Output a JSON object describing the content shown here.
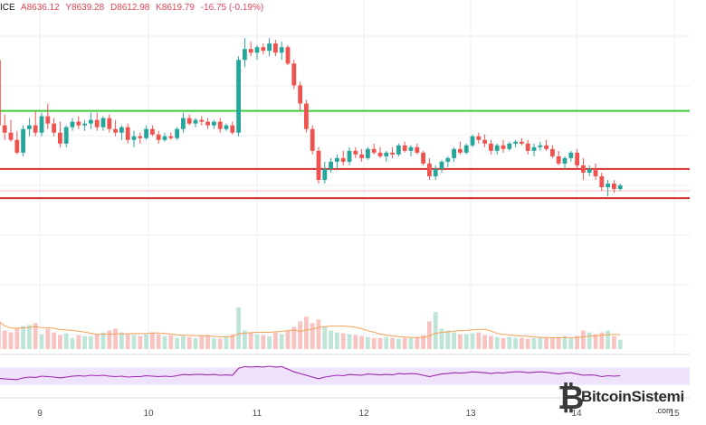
{
  "header": {
    "symbol": "ICE",
    "open": "A8636.12",
    "high": "Y8639.28",
    "low": "D8612.98",
    "close": "K8619.79",
    "change": "-16.75 (-0.19%)"
  },
  "colors": {
    "up": "#26a69a",
    "down": "#ef5350",
    "resistance": "#3ccd3c",
    "support": "#d32f2f",
    "ma": "#f4a35a",
    "rsi_line": "#9c27b0",
    "rsi_band": "#efe2fb",
    "grid": "#eceff4"
  },
  "watermark": {
    "text": "BitcoinSistemi",
    "suffix": ".com",
    "icon": "bitcoin-logo-icon"
  },
  "chart_data": {
    "type": "candlestick",
    "x_ticks": [
      "9",
      "10",
      "11",
      "12",
      "13",
      "14",
      "15"
    ],
    "price_range": [
      8560,
      9480
    ],
    "horizontal_lines": [
      {
        "name": "resistance",
        "value": 9220
      },
      {
        "name": "support-1",
        "value": 9060
      },
      {
        "name": "support-2",
        "value": 8980
      }
    ],
    "candles": [
      [
        9360,
        9370,
        9160,
        9180
      ],
      [
        9180,
        9210,
        9140,
        9160
      ],
      [
        9160,
        9195,
        9135,
        9140
      ],
      [
        9140,
        9165,
        9100,
        9105
      ],
      [
        9105,
        9180,
        9095,
        9170
      ],
      [
        9170,
        9200,
        9150,
        9180
      ],
      [
        9180,
        9220,
        9150,
        9160
      ],
      [
        9160,
        9215,
        9150,
        9205
      ],
      [
        9205,
        9240,
        9170,
        9185
      ],
      [
        9185,
        9200,
        9150,
        9160
      ],
      [
        9160,
        9190,
        9120,
        9130
      ],
      [
        9130,
        9180,
        9120,
        9175
      ],
      [
        9175,
        9200,
        9165,
        9190
      ],
      [
        9190,
        9205,
        9170,
        9180
      ],
      [
        9180,
        9195,
        9165,
        9185
      ],
      [
        9185,
        9215,
        9170,
        9195
      ],
      [
        9195,
        9215,
        9165,
        9175
      ],
      [
        9175,
        9205,
        9165,
        9200
      ],
      [
        9200,
        9210,
        9160,
        9170
      ],
      [
        9170,
        9195,
        9150,
        9160
      ],
      [
        9160,
        9180,
        9140,
        9175
      ],
      [
        9175,
        9185,
        9130,
        9140
      ],
      [
        9140,
        9165,
        9120,
        9150
      ],
      [
        9150,
        9160,
        9130,
        9145
      ],
      [
        9145,
        9180,
        9140,
        9170
      ],
      [
        9170,
        9180,
        9150,
        9155
      ],
      [
        9155,
        9165,
        9130,
        9140
      ],
      [
        9140,
        9160,
        9135,
        9150
      ],
      [
        9150,
        9160,
        9140,
        9145
      ],
      [
        9145,
        9175,
        9140,
        9170
      ],
      [
        9170,
        9215,
        9160,
        9200
      ],
      [
        9200,
        9210,
        9180,
        9185
      ],
      [
        9185,
        9200,
        9175,
        9195
      ],
      [
        9195,
        9205,
        9180,
        9190
      ],
      [
        9190,
        9200,
        9170,
        9180
      ],
      [
        9180,
        9195,
        9170,
        9190
      ],
      [
        9190,
        9200,
        9160,
        9170
      ],
      [
        9170,
        9185,
        9165,
        9180
      ],
      [
        9180,
        9190,
        9155,
        9160
      ],
      [
        9160,
        9370,
        9150,
        9360
      ],
      [
        9360,
        9420,
        9340,
        9390
      ],
      [
        9390,
        9410,
        9370,
        9380
      ],
      [
        9380,
        9400,
        9360,
        9395
      ],
      [
        9395,
        9405,
        9375,
        9385
      ],
      [
        9385,
        9420,
        9370,
        9405
      ],
      [
        9405,
        9415,
        9370,
        9380
      ],
      [
        9380,
        9410,
        9360,
        9395
      ],
      [
        9395,
        9400,
        9345,
        9350
      ],
      [
        9350,
        9360,
        9280,
        9290
      ],
      [
        9290,
        9300,
        9220,
        9240
      ],
      [
        9240,
        9250,
        9160,
        9170
      ],
      [
        9170,
        9180,
        9100,
        9110
      ],
      [
        9110,
        9120,
        9020,
        9030
      ],
      [
        9030,
        9080,
        9020,
        9060
      ],
      [
        9060,
        9090,
        9050,
        9080
      ],
      [
        9080,
        9100,
        9060,
        9090
      ],
      [
        9090,
        9110,
        9070,
        9080
      ],
      [
        9080,
        9120,
        9070,
        9110
      ],
      [
        9110,
        9120,
        9090,
        9100
      ],
      [
        9100,
        9115,
        9080,
        9090
      ],
      [
        9090,
        9120,
        9085,
        9115
      ],
      [
        9115,
        9130,
        9100,
        9105
      ],
      [
        9105,
        9120,
        9090,
        9095
      ],
      [
        9095,
        9110,
        9080,
        9105
      ],
      [
        9105,
        9120,
        9090,
        9100
      ],
      [
        9100,
        9130,
        9095,
        9125
      ],
      [
        9125,
        9135,
        9105,
        9110
      ],
      [
        9110,
        9125,
        9095,
        9120
      ],
      [
        9120,
        9130,
        9100,
        9105
      ],
      [
        9105,
        9110,
        9070,
        9075
      ],
      [
        9075,
        9090,
        9030,
        9040
      ],
      [
        9040,
        9070,
        9030,
        9060
      ],
      [
        9060,
        9085,
        9050,
        9080
      ],
      [
        9080,
        9095,
        9065,
        9090
      ],
      [
        9090,
        9120,
        9080,
        9115
      ],
      [
        9115,
        9135,
        9100,
        9105
      ],
      [
        9105,
        9130,
        9100,
        9125
      ],
      [
        9125,
        9155,
        9120,
        9150
      ],
      [
        9150,
        9160,
        9130,
        9140
      ],
      [
        9140,
        9155,
        9120,
        9130
      ],
      [
        9130,
        9140,
        9100,
        9110
      ],
      [
        9110,
        9130,
        9100,
        9125
      ],
      [
        9125,
        9140,
        9105,
        9115
      ],
      [
        9115,
        9135,
        9110,
        9130
      ],
      [
        9130,
        9140,
        9120,
        9135
      ],
      [
        9135,
        9145,
        9125,
        9130
      ],
      [
        9130,
        9140,
        9100,
        9110
      ],
      [
        9110,
        9130,
        9095,
        9120
      ],
      [
        9120,
        9135,
        9110,
        9125
      ],
      [
        9125,
        9140,
        9110,
        9115
      ],
      [
        9115,
        9125,
        9090,
        9095
      ],
      [
        9095,
        9110,
        9070,
        9075
      ],
      [
        9075,
        9095,
        9060,
        9090
      ],
      [
        9090,
        9110,
        9080,
        9105
      ],
      [
        9105,
        9115,
        9060,
        9070
      ],
      [
        9070,
        9090,
        9030,
        9050
      ],
      [
        9050,
        9070,
        9040,
        9060
      ],
      [
        9060,
        9075,
        9030,
        9040
      ],
      [
        9040,
        9050,
        9000,
        9010
      ],
      [
        9010,
        9030,
        8985,
        9020
      ],
      [
        9020,
        9030,
        8995,
        9005
      ],
      [
        9005,
        9020,
        9000,
        9015
      ]
    ],
    "volume": [
      30,
      20,
      18,
      22,
      25,
      26,
      28,
      16,
      22,
      18,
      15,
      17,
      12,
      15,
      14,
      14,
      16,
      18,
      20,
      22,
      18,
      16,
      15,
      14,
      16,
      18,
      16,
      14,
      15,
      12,
      14,
      13,
      12,
      14,
      15,
      12,
      11,
      14,
      16,
      45,
      20,
      18,
      16,
      15,
      14,
      18,
      16,
      20,
      24,
      30,
      35,
      28,
      32,
      25,
      20,
      18,
      17,
      16,
      15,
      14,
      13,
      12,
      12,
      13,
      12,
      11,
      12,
      12,
      13,
      15,
      30,
      40,
      22,
      20,
      18,
      16,
      16,
      17,
      18,
      15,
      14,
      13,
      12,
      13,
      12,
      12,
      11,
      12,
      13,
      12,
      12,
      13,
      14,
      12,
      14,
      20,
      18,
      16,
      18,
      20,
      14,
      10
    ],
    "rsi": [
      45,
      44,
      43,
      42,
      46,
      48,
      47,
      50,
      49,
      48,
      46,
      48,
      50,
      51,
      50,
      52,
      51,
      52,
      50,
      49,
      50,
      48,
      49,
      49,
      51,
      50,
      49,
      50,
      49,
      51,
      54,
      53,
      54,
      54,
      53,
      54,
      52,
      53,
      52,
      68,
      72,
      71,
      72,
      71,
      73,
      71,
      72,
      66,
      60,
      56,
      52,
      48,
      44,
      48,
      50,
      52,
      51,
      54,
      53,
      52,
      55,
      54,
      53,
      54,
      53,
      56,
      55,
      56,
      55,
      52,
      49,
      52,
      55,
      56,
      58,
      57,
      58,
      60,
      59,
      58,
      56,
      58,
      57,
      59,
      60,
      60,
      58,
      59,
      60,
      59,
      57,
      55,
      57,
      58,
      55,
      52,
      53,
      52,
      49,
      51,
      50,
      51
    ],
    "rsi_range": [
      0,
      100
    ],
    "rsi_band": [
      30,
      70
    ]
  }
}
